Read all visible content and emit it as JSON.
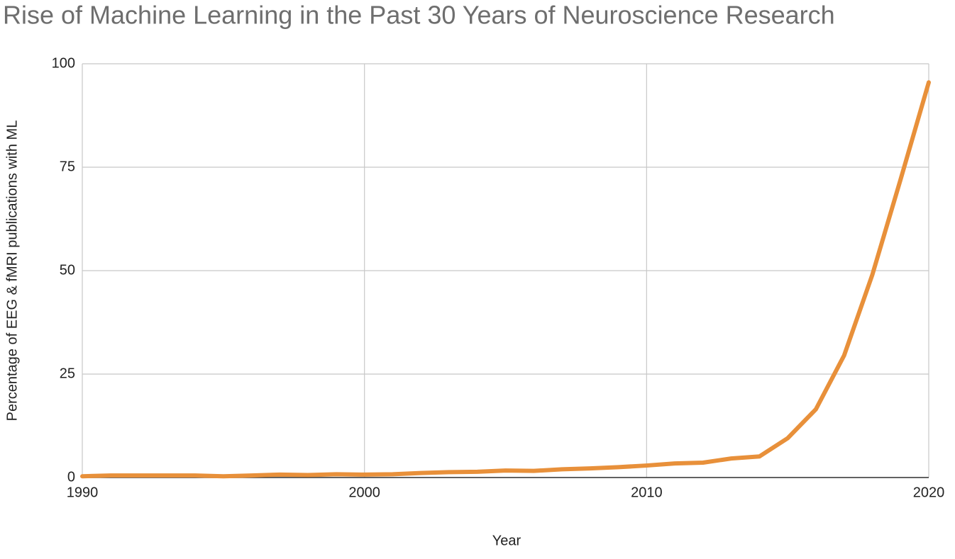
{
  "chart_data": {
    "type": "line",
    "title": "Rise of Machine Learning in the Past 30 Years of Neuroscience Research",
    "x_label": "Year",
    "y_label": "Percentage of EEG & fMRI publications with ML",
    "x": [
      1990,
      1991,
      1992,
      1993,
      1994,
      1995,
      1996,
      1997,
      1998,
      1999,
      2000,
      2001,
      2002,
      2003,
      2004,
      2005,
      2006,
      2007,
      2008,
      2009,
      2010,
      2011,
      2012,
      2013,
      2014,
      2015,
      2016,
      2017,
      2018,
      2019,
      2020
    ],
    "series": [
      {
        "name": "Percentage of EEG & fMRI publications with ML",
        "color": "#e8903a",
        "values": [
          0.3,
          0.5,
          0.5,
          0.5,
          0.5,
          0.3,
          0.5,
          0.7,
          0.6,
          0.8,
          0.7,
          0.8,
          1.1,
          1.3,
          1.4,
          1.7,
          1.6,
          2.0,
          2.2,
          2.5,
          2.9,
          3.4,
          3.6,
          4.6,
          5.1,
          9.5,
          16.5,
          29.5,
          49,
          72,
          95.5
        ]
      }
    ],
    "xlim": [
      1990,
      2020
    ],
    "xticks": [
      1990,
      2000,
      2010,
      2020
    ],
    "ylim": [
      0,
      100
    ],
    "yticks": [
      0,
      25,
      50,
      75,
      100
    ],
    "grid": true
  }
}
